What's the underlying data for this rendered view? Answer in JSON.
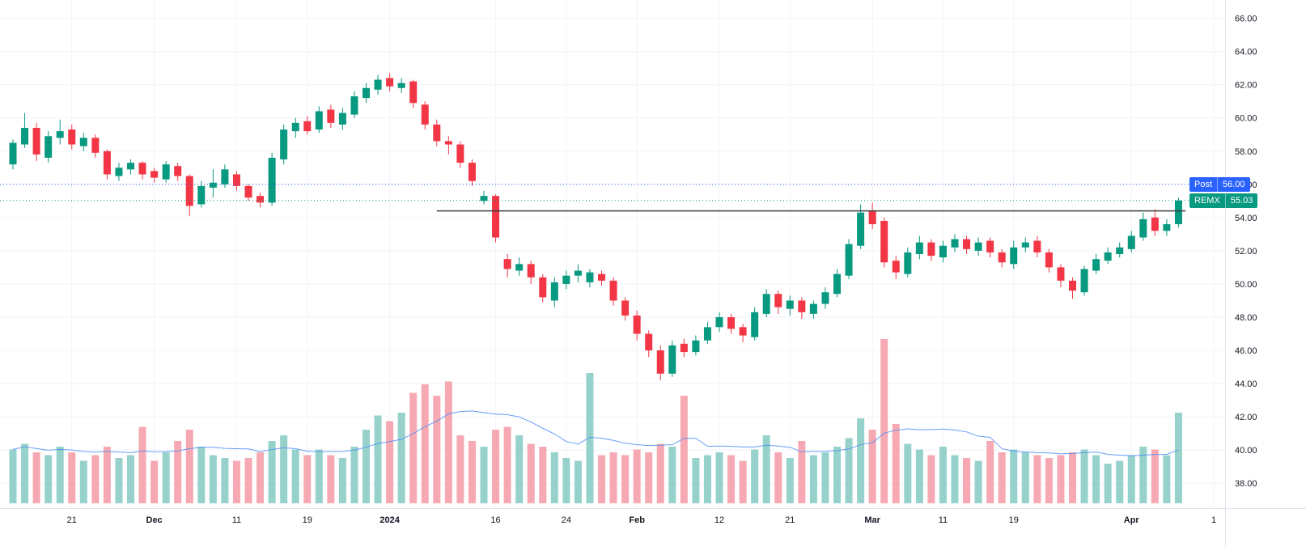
{
  "colors": {
    "up": "#089981",
    "down": "#f23645",
    "volume_up": "#96d2cb",
    "volume_down": "#f6a9b2",
    "volume_ma": "#4e8df5",
    "grid": "#f0f3fa",
    "axis_border": "#e0e3eb",
    "axis_text": "#131722",
    "background": "#ffffff"
  },
  "chart_data": {
    "type": "candlestick",
    "symbol": "REMX",
    "last_price": 55.03,
    "post_market_price": 56.0,
    "ylim": [
      36.5,
      67.1
    ],
    "grid": true,
    "price_ticks": [
      66,
      64,
      62,
      60,
      58,
      56,
      54,
      52,
      50,
      48,
      46,
      44,
      42,
      40,
      38
    ],
    "time_ticks": [
      {
        "index": 5,
        "label": "21",
        "bold": false
      },
      {
        "index": 12,
        "label": "Dec",
        "bold": true
      },
      {
        "index": 19,
        "label": "11",
        "bold": false
      },
      {
        "index": 25,
        "label": "19",
        "bold": false
      },
      {
        "index": 32,
        "label": "2024",
        "bold": true
      },
      {
        "index": 41,
        "label": "16",
        "bold": false
      },
      {
        "index": 47,
        "label": "24",
        "bold": false
      },
      {
        "index": 53,
        "label": "Feb",
        "bold": true
      },
      {
        "index": 60,
        "label": "12",
        "bold": false
      },
      {
        "index": 66,
        "label": "21",
        "bold": false
      },
      {
        "index": 73,
        "label": "Mar",
        "bold": true
      },
      {
        "index": 79,
        "label": "11",
        "bold": false
      },
      {
        "index": 85,
        "label": "19",
        "bold": false
      },
      {
        "index": 95,
        "label": "Apr",
        "bold": true
      },
      {
        "index": 102,
        "label": "1",
        "bold": false
      }
    ],
    "price_lines": [
      {
        "name": "post",
        "label": "Post",
        "value": "56.00",
        "price": 56.0,
        "color": "#2962ff",
        "style": "dotted"
      },
      {
        "name": "remx",
        "label": "REMX",
        "value": "55.03",
        "price": 55.03,
        "color": "#089981",
        "style": "dotted"
      }
    ],
    "trendline": {
      "price": 54.4,
      "start_index": 36,
      "end_index": 99.6,
      "color": "#3c4043"
    },
    "volume_ma_period": 10,
    "candles": [
      [
        57.2,
        58.7,
        56.9,
        58.5,
        0.95
      ],
      [
        58.4,
        60.3,
        58.2,
        59.4,
        1.05
      ],
      [
        59.4,
        59.7,
        57.4,
        57.8,
        0.9
      ],
      [
        57.6,
        59.2,
        57.3,
        58.9,
        0.85
      ],
      [
        58.8,
        59.9,
        58.4,
        59.2,
        1.0
      ],
      [
        59.3,
        59.6,
        58.1,
        58.4,
        0.9
      ],
      [
        58.3,
        59.1,
        58.0,
        58.8,
        0.75
      ],
      [
        58.8,
        59.0,
        57.6,
        57.9,
        0.85
      ],
      [
        58.0,
        58.1,
        56.3,
        56.6,
        1.0
      ],
      [
        56.5,
        57.3,
        56.2,
        57.0,
        0.8
      ],
      [
        56.9,
        57.5,
        56.6,
        57.3,
        0.85
      ],
      [
        57.3,
        57.4,
        56.3,
        56.6,
        1.35
      ],
      [
        56.8,
        57.0,
        56.1,
        56.4,
        0.75
      ],
      [
        56.3,
        57.4,
        56.1,
        57.2,
        0.9
      ],
      [
        57.1,
        57.3,
        56.2,
        56.5,
        1.1
      ],
      [
        56.5,
        56.6,
        54.1,
        54.7,
        1.3
      ],
      [
        54.8,
        56.2,
        54.6,
        55.9,
        1.0
      ],
      [
        55.8,
        56.9,
        55.2,
        56.1,
        0.85
      ],
      [
        56.0,
        57.2,
        55.8,
        56.9,
        0.8
      ],
      [
        56.6,
        56.8,
        55.6,
        55.9,
        0.75
      ],
      [
        55.9,
        56.0,
        55.0,
        55.2,
        0.8
      ],
      [
        55.3,
        55.5,
        54.6,
        54.9,
        0.9
      ],
      [
        54.9,
        57.9,
        54.7,
        57.6,
        1.1
      ],
      [
        57.5,
        59.6,
        57.2,
        59.3,
        1.2
      ],
      [
        59.2,
        60.0,
        58.8,
        59.7,
        0.95
      ],
      [
        59.8,
        60.1,
        59.0,
        59.2,
        0.85
      ],
      [
        59.3,
        60.7,
        59.1,
        60.4,
        0.95
      ],
      [
        60.5,
        60.8,
        59.4,
        59.7,
        0.85
      ],
      [
        59.6,
        60.6,
        59.3,
        60.3,
        0.8
      ],
      [
        60.2,
        61.6,
        60.0,
        61.3,
        1.0
      ],
      [
        61.2,
        62.1,
        60.9,
        61.8,
        1.3
      ],
      [
        61.7,
        62.6,
        61.4,
        62.3,
        1.55
      ],
      [
        62.4,
        62.7,
        61.6,
        61.9,
        1.45
      ],
      [
        61.8,
        62.4,
        61.5,
        62.1,
        1.6
      ],
      [
        62.2,
        62.3,
        60.6,
        60.9,
        1.95
      ],
      [
        60.8,
        61.0,
        59.3,
        59.6,
        2.1
      ],
      [
        59.6,
        59.9,
        58.3,
        58.6,
        1.9
      ],
      [
        58.6,
        58.9,
        57.8,
        58.4,
        2.15
      ],
      [
        58.4,
        58.6,
        57.0,
        57.3,
        1.2
      ],
      [
        57.3,
        57.5,
        55.9,
        56.2,
        1.1
      ],
      [
        55.0,
        55.6,
        54.8,
        55.3,
        1.0
      ],
      [
        55.3,
        55.4,
        52.5,
        52.8,
        1.3
      ],
      [
        51.5,
        51.8,
        50.4,
        50.9,
        1.35
      ],
      [
        50.8,
        51.6,
        50.5,
        51.2,
        1.2
      ],
      [
        51.2,
        51.4,
        50.0,
        50.4,
        1.05
      ],
      [
        50.4,
        50.6,
        48.9,
        49.2,
        1.0
      ],
      [
        49.0,
        50.4,
        48.6,
        50.1,
        0.9
      ],
      [
        50.0,
        50.8,
        49.7,
        50.5,
        0.8
      ],
      [
        50.5,
        51.2,
        50.1,
        50.8,
        0.75
      ],
      [
        50.1,
        50.9,
        49.8,
        50.7,
        2.3
      ],
      [
        50.6,
        50.8,
        49.9,
        50.2,
        0.85
      ],
      [
        50.2,
        50.4,
        48.7,
        49.0,
        0.9
      ],
      [
        49.0,
        49.2,
        47.8,
        48.1,
        0.85
      ],
      [
        48.1,
        48.4,
        46.6,
        47.0,
        0.95
      ],
      [
        47.0,
        47.2,
        45.6,
        46.0,
        0.9
      ],
      [
        46.0,
        46.3,
        44.2,
        44.6,
        1.05
      ],
      [
        44.6,
        46.6,
        44.4,
        46.3,
        1.0
      ],
      [
        46.4,
        46.7,
        45.6,
        45.9,
        1.9
      ],
      [
        45.9,
        46.9,
        45.7,
        46.6,
        0.8
      ],
      [
        46.6,
        47.7,
        46.4,
        47.4,
        0.85
      ],
      [
        47.4,
        48.3,
        47.1,
        48.0,
        0.9
      ],
      [
        48.0,
        48.2,
        47.0,
        47.3,
        0.85
      ],
      [
        47.4,
        47.6,
        46.5,
        46.9,
        0.75
      ],
      [
        46.8,
        48.6,
        46.6,
        48.3,
        0.95
      ],
      [
        48.2,
        49.7,
        48.0,
        49.4,
        1.2
      ],
      [
        49.4,
        49.6,
        48.2,
        48.6,
        0.9
      ],
      [
        48.5,
        49.3,
        48.1,
        49.0,
        0.8
      ],
      [
        49.0,
        49.2,
        47.9,
        48.3,
        1.1
      ],
      [
        48.2,
        49.0,
        47.9,
        48.8,
        0.85
      ],
      [
        48.8,
        49.8,
        48.5,
        49.5,
        0.9
      ],
      [
        49.4,
        50.9,
        49.2,
        50.6,
        1.0
      ],
      [
        50.5,
        52.7,
        50.3,
        52.4,
        1.15
      ],
      [
        52.3,
        54.8,
        52.1,
        54.3,
        1.5
      ],
      [
        54.4,
        54.9,
        53.3,
        53.6,
        1.3
      ],
      [
        53.8,
        54.0,
        51.0,
        51.3,
        2.9
      ],
      [
        51.4,
        51.7,
        50.3,
        50.7,
        1.4
      ],
      [
        50.6,
        52.2,
        50.4,
        51.9,
        1.05
      ],
      [
        51.8,
        52.9,
        51.5,
        52.5,
        0.95
      ],
      [
        52.5,
        52.7,
        51.4,
        51.7,
        0.85
      ],
      [
        51.6,
        52.6,
        51.3,
        52.3,
        1.0
      ],
      [
        52.2,
        53.0,
        51.9,
        52.7,
        0.85
      ],
      [
        52.7,
        52.9,
        51.8,
        52.1,
        0.8
      ],
      [
        52.0,
        52.8,
        51.7,
        52.5,
        0.75
      ],
      [
        52.6,
        52.8,
        51.6,
        51.9,
        1.1
      ],
      [
        51.9,
        52.1,
        51.0,
        51.3,
        0.9
      ],
      [
        51.2,
        52.6,
        50.9,
        52.2,
        0.95
      ],
      [
        52.2,
        52.8,
        51.9,
        52.5,
        0.9
      ],
      [
        52.6,
        52.9,
        51.6,
        51.9,
        0.85
      ],
      [
        51.9,
        52.1,
        50.7,
        51.0,
        0.8
      ],
      [
        51.0,
        51.2,
        49.8,
        50.2,
        0.85
      ],
      [
        50.2,
        50.4,
        49.1,
        49.6,
        0.9
      ],
      [
        49.5,
        51.1,
        49.3,
        50.9,
        0.95
      ],
      [
        50.8,
        51.8,
        50.6,
        51.5,
        0.85
      ],
      [
        51.4,
        52.2,
        51.2,
        51.9,
        0.7
      ],
      [
        51.8,
        52.5,
        51.6,
        52.2,
        0.75
      ],
      [
        52.1,
        53.2,
        51.9,
        52.9,
        0.85
      ],
      [
        52.8,
        54.3,
        52.6,
        53.9,
        1.0
      ],
      [
        54.0,
        54.5,
        52.9,
        53.2,
        0.95
      ],
      [
        53.2,
        53.9,
        52.9,
        53.6,
        0.85
      ],
      [
        53.6,
        55.2,
        53.4,
        55.03,
        1.6
      ]
    ]
  }
}
